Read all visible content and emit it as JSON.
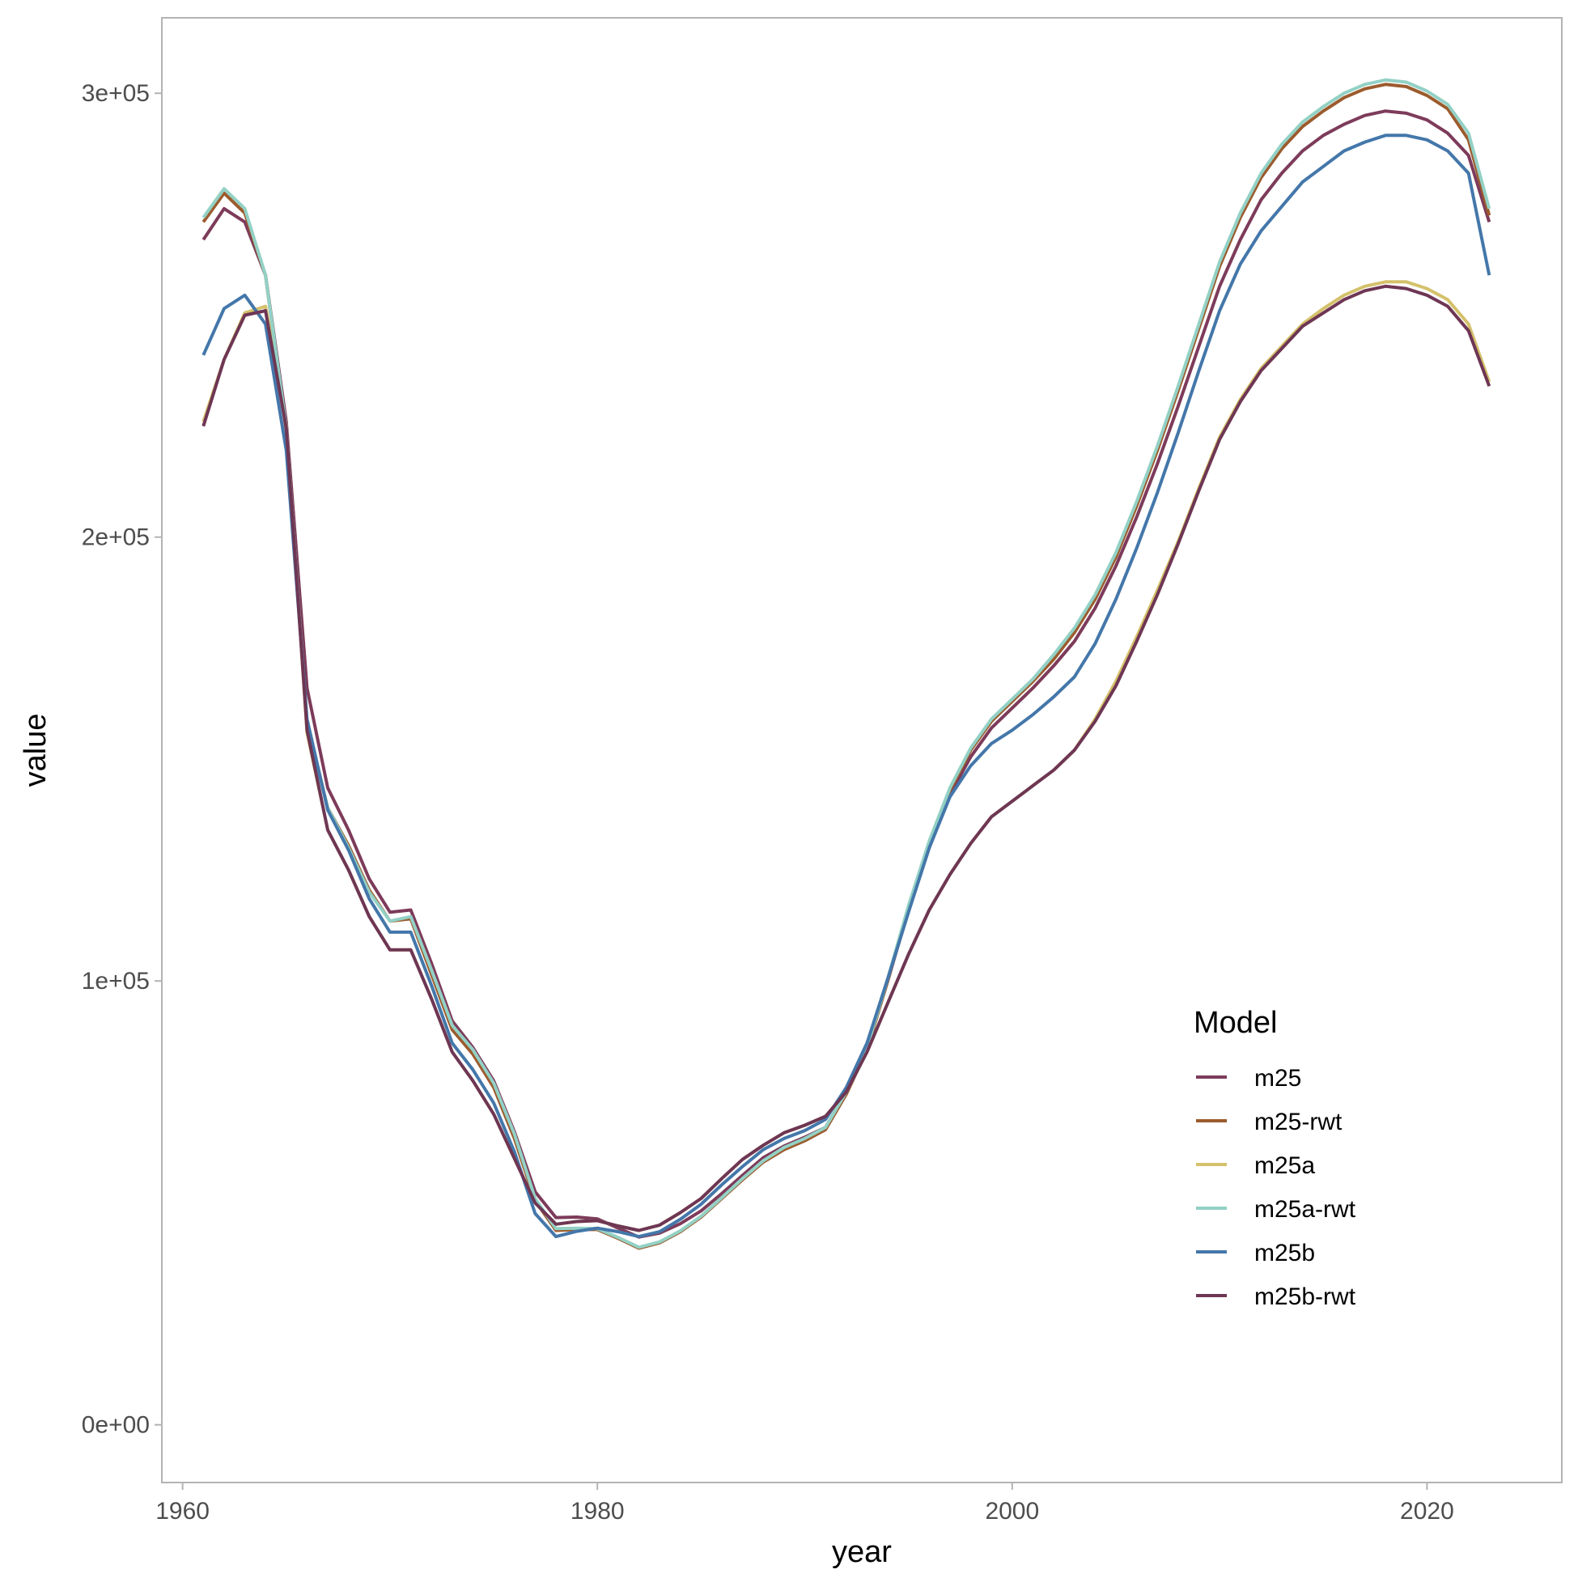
{
  "chart_data": {
    "type": "line",
    "xlabel": "year",
    "ylabel": "value",
    "xlim": [
      1959,
      2026.5
    ],
    "ylim": [
      -13000,
      317000
    ],
    "x_ticks": [
      1960,
      1980,
      2000,
      2020
    ],
    "x_tick_labels": [
      "1960",
      "1980",
      "2000",
      "2020"
    ],
    "y_ticks": [
      0,
      100000,
      200000,
      300000
    ],
    "y_tick_labels": [
      "0e+00",
      "1e+05",
      "2e+05",
      "3e+05"
    ],
    "grid": false,
    "legend": {
      "title": "Model",
      "position": "bottom-right-inside"
    },
    "x": [
      1961,
      1962,
      1963,
      1964,
      1965,
      1966,
      1967,
      1968,
      1969,
      1970,
      1971,
      1972,
      1973,
      1974,
      1975,
      1976,
      1977,
      1978,
      1979,
      1980,
      1981,
      1982,
      1983,
      1984,
      1985,
      1986,
      1987,
      1988,
      1989,
      1990,
      1991,
      1992,
      1993,
      1994,
      1995,
      1996,
      1997,
      1998,
      1999,
      2000,
      2001,
      2002,
      2003,
      2004,
      2005,
      2006,
      2007,
      2008,
      2009,
      2010,
      2011,
      2012,
      2013,
      2014,
      2015,
      2016,
      2017,
      2018,
      2019,
      2020,
      2021,
      2022,
      2023
    ],
    "series": [
      {
        "name": "m25",
        "color": "#7d3b5a",
        "values": [
          267000,
          274000,
          271000,
          259000,
          226000,
          166000,
          143500,
          134000,
          123000,
          115500,
          116000,
          104000,
          91000,
          85000,
          77500,
          66000,
          52500,
          46700,
          46800,
          46400,
          44300,
          42300,
          43200,
          45300,
          48200,
          52100,
          56200,
          60200,
          62800,
          64800,
          67000,
          75000,
          85000,
          100000,
          116000,
          130000,
          142000,
          150500,
          157000,
          161500,
          166000,
          171000,
          176500,
          184000,
          193500,
          204500,
          216500,
          229500,
          243000,
          256500,
          267000,
          276000,
          282000,
          287000,
          290500,
          293000,
          295000,
          296000,
          295500,
          294000,
          291000,
          286000,
          271000
        ]
      },
      {
        "name": "m25-rwt",
        "color": "#9c5b2d",
        "values": [
          271000,
          277500,
          273000,
          259000,
          224000,
          158000,
          139000,
          130500,
          120500,
          113500,
          114000,
          101500,
          89000,
          83500,
          76000,
          64500,
          50500,
          43800,
          44000,
          44000,
          42000,
          39800,
          41000,
          43500,
          46800,
          51000,
          55200,
          59200,
          62000,
          64000,
          66500,
          74500,
          84500,
          100000,
          116500,
          131000,
          143000,
          152000,
          158500,
          163000,
          167500,
          172500,
          178500,
          186000,
          195500,
          207000,
          219500,
          233000,
          247000,
          261000,
          272000,
          281000,
          287500,
          292500,
          296000,
          299000,
          301000,
          302000,
          301500,
          299500,
          296500,
          289500,
          272500
        ]
      },
      {
        "name": "m25a",
        "color": "#d4c16b",
        "values": [
          226000,
          240000,
          250500,
          252000,
          225000,
          156000,
          134000,
          125000,
          114500,
          107000,
          107000,
          96000,
          84000,
          77500,
          70000,
          60000,
          50000,
          45200,
          45800,
          46000,
          44800,
          43800,
          45000,
          47800,
          51000,
          55500,
          59800,
          63000,
          65800,
          67500,
          69500,
          75000,
          84000,
          95000,
          106000,
          116000,
          124000,
          131000,
          137000,
          140500,
          144000,
          147500,
          152000,
          159000,
          167500,
          177500,
          188000,
          199000,
          211000,
          222500,
          231000,
          238000,
          243000,
          248000,
          251500,
          254500,
          256500,
          257500,
          257500,
          256000,
          253500,
          248000,
          235000
        ]
      },
      {
        "name": "m25a-rwt",
        "color": "#93d1c5",
        "values": [
          272000,
          278500,
          274000,
          259000,
          224500,
          157500,
          139000,
          130000,
          120000,
          113500,
          114500,
          102500,
          90000,
          84500,
          77000,
          65500,
          51000,
          44200,
          44300,
          44200,
          42200,
          40000,
          41200,
          43700,
          47000,
          51200,
          55500,
          59500,
          62500,
          64500,
          67000,
          75000,
          85000,
          100500,
          117000,
          131500,
          143500,
          152500,
          159000,
          163500,
          168000,
          173500,
          179500,
          187000,
          196500,
          208000,
          220500,
          234000,
          248000,
          262000,
          273000,
          282000,
          288500,
          293500,
          297000,
          300000,
          302000,
          303000,
          302500,
          300500,
          297500,
          291000,
          274000
        ]
      },
      {
        "name": "m25b",
        "color": "#4477aa",
        "values": [
          241000,
          251500,
          254500,
          248000,
          219500,
          159000,
          138500,
          129500,
          118500,
          111000,
          111000,
          99000,
          86000,
          80000,
          72500,
          61500,
          47600,
          42400,
          43600,
          44300,
          43500,
          42400,
          43500,
          46300,
          49700,
          54100,
          58200,
          62000,
          64500,
          66300,
          68800,
          76000,
          86000,
          100500,
          115500,
          130000,
          141500,
          148500,
          153500,
          156500,
          160000,
          164000,
          168500,
          176000,
          186000,
          197500,
          210000,
          223500,
          237500,
          251000,
          261500,
          269000,
          274500,
          280000,
          283500,
          287000,
          289000,
          290500,
          290500,
          289500,
          287000,
          282000,
          259000
        ]
      },
      {
        "name": "m25b-rwt",
        "color": "#6e3654",
        "values": [
          225000,
          240000,
          250000,
          251000,
          224500,
          156500,
          134000,
          125000,
          114500,
          107000,
          107000,
          96000,
          84000,
          77500,
          70000,
          60000,
          50000,
          45200,
          45800,
          46000,
          44800,
          43800,
          45000,
          47800,
          51000,
          55500,
          59800,
          63000,
          65800,
          67500,
          69500,
          75000,
          84000,
          95000,
          106000,
          116000,
          124000,
          131000,
          137000,
          140500,
          144000,
          147500,
          152000,
          158500,
          166500,
          176500,
          187000,
          198500,
          210500,
          222000,
          230500,
          237500,
          242500,
          247500,
          250500,
          253500,
          255500,
          256500,
          256000,
          254500,
          252000,
          246500,
          234000
        ]
      }
    ]
  }
}
